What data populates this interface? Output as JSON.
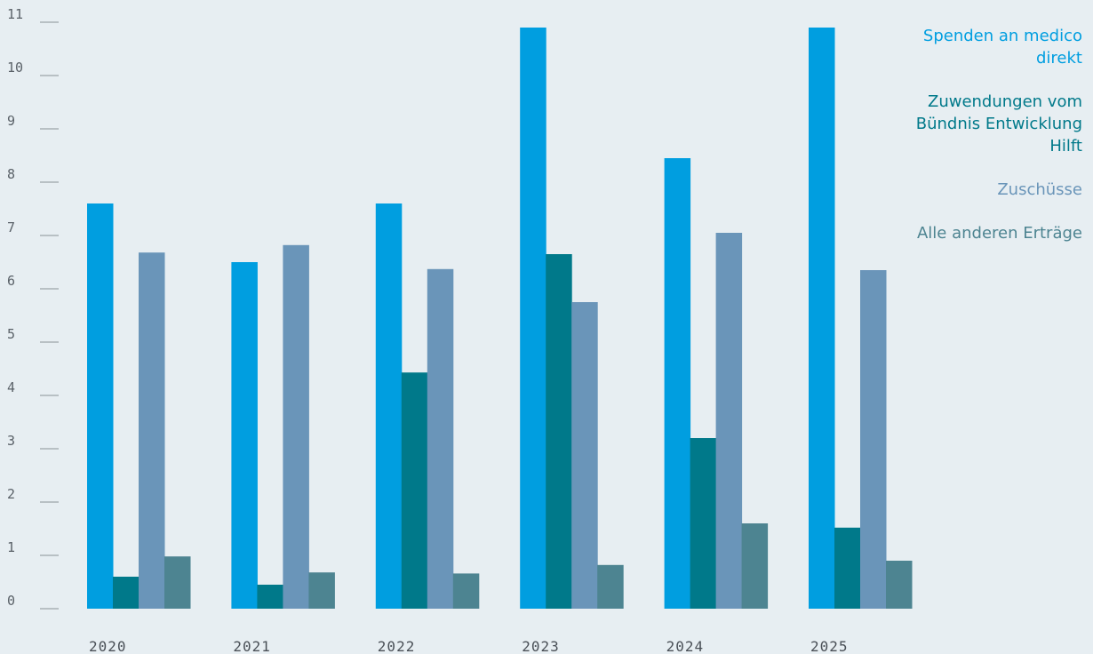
{
  "chart_data": {
    "type": "bar",
    "categories": [
      "2020",
      "2021",
      "2022",
      "2023",
      "2024",
      "2025"
    ],
    "series": [
      {
        "name": "Spenden an medico direkt",
        "color": "#009ee0",
        "values": [
          7.6,
          6.5,
          7.6,
          10.9,
          8.45,
          10.9
        ]
      },
      {
        "name": "Zuwendungen vom Bündnis Entwicklung Hilft",
        "color": "#00798a",
        "values": [
          0.6,
          0.45,
          4.43,
          6.65,
          3.2,
          1.52
        ]
      },
      {
        "name": "Zuschüsse",
        "color": "#6a95b9",
        "values": [
          6.68,
          6.82,
          6.37,
          5.75,
          7.05,
          6.35
        ]
      },
      {
        "name": "Alle anderen Erträge",
        "color": "#4d8491",
        "values": [
          0.98,
          0.68,
          0.66,
          0.82,
          1.6,
          0.9
        ]
      }
    ],
    "yticks": [
      "0",
      "1",
      "2",
      "3",
      "4",
      "5",
      "6",
      "7",
      "8",
      "9",
      "10",
      "11"
    ],
    "ylim": [
      0,
      11
    ],
    "legend_position": "top-right",
    "grid": false
  }
}
